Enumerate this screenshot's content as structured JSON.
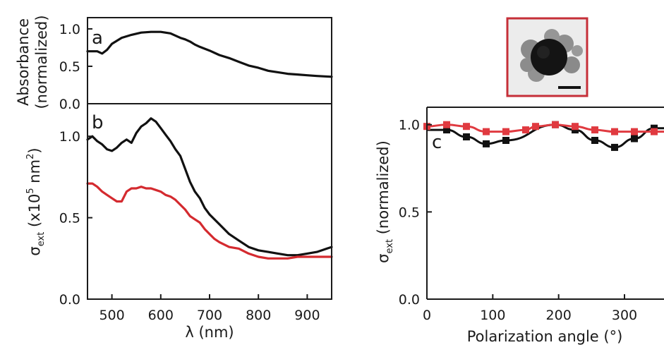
{
  "chart_data": [
    {
      "panel": "a",
      "type": "line",
      "xlabel": "λ (nm)",
      "ylabel": [
        "Absorbance",
        "(normalized)"
      ],
      "xlim": [
        450,
        950
      ],
      "ylim": [
        0,
        1.15
      ],
      "xticks": [
        "500",
        "600",
        "700",
        "800",
        "900"
      ],
      "yticks": [
        "0.0",
        "0.5",
        "1.0"
      ],
      "series": [
        {
          "color": "#111111",
          "x": [
            450,
            470,
            480,
            490,
            500,
            520,
            540,
            560,
            580,
            600,
            620,
            640,
            650,
            660,
            670,
            680,
            700,
            720,
            740,
            760,
            780,
            800,
            820,
            840,
            860,
            880,
            900,
            920,
            950
          ],
          "y": [
            0.7,
            0.7,
            0.67,
            0.72,
            0.8,
            0.88,
            0.92,
            0.95,
            0.96,
            0.96,
            0.94,
            0.88,
            0.86,
            0.83,
            0.79,
            0.76,
            0.71,
            0.65,
            0.61,
            0.56,
            0.51,
            0.48,
            0.44,
            0.42,
            0.4,
            0.39,
            0.38,
            0.37,
            0.36
          ]
        }
      ]
    },
    {
      "panel": "b",
      "type": "line",
      "xlabel": "λ (nm)",
      "ylabel": "σext (x10^5 nm^2)",
      "ylabel_parts": {
        "sigma": "σ",
        "sub": "ext",
        "main": " (x10",
        "exp": "5",
        "unit": " nm",
        "unit_exp": "2",
        "close": ")"
      },
      "xlim": [
        450,
        950
      ],
      "ylim": [
        0,
        1.2
      ],
      "xticks": [
        "500",
        "600",
        "700",
        "800",
        "900"
      ],
      "yticks": [
        "0.0",
        "0.5",
        "1.0"
      ],
      "series": [
        {
          "color": "#111111",
          "x": [
            450,
            460,
            470,
            480,
            490,
            500,
            510,
            520,
            530,
            540,
            550,
            560,
            570,
            580,
            590,
            600,
            610,
            620,
            630,
            640,
            650,
            660,
            670,
            680,
            690,
            700,
            720,
            740,
            760,
            780,
            800,
            820,
            840,
            860,
            880,
            900,
            920,
            940,
            950
          ],
          "y": [
            0.98,
            1.0,
            0.97,
            0.95,
            0.92,
            0.91,
            0.93,
            0.96,
            0.98,
            0.96,
            1.02,
            1.06,
            1.08,
            1.11,
            1.09,
            1.05,
            1.01,
            0.97,
            0.92,
            0.88,
            0.8,
            0.72,
            0.66,
            0.62,
            0.56,
            0.52,
            0.46,
            0.4,
            0.36,
            0.32,
            0.3,
            0.29,
            0.28,
            0.27,
            0.27,
            0.28,
            0.29,
            0.31,
            0.32
          ]
        },
        {
          "color": "#d42a2f",
          "x": [
            450,
            460,
            470,
            480,
            490,
            500,
            510,
            520,
            530,
            540,
            550,
            560,
            570,
            580,
            590,
            600,
            610,
            620,
            630,
            640,
            650,
            660,
            670,
            680,
            690,
            700,
            710,
            720,
            740,
            760,
            780,
            800,
            820,
            840,
            860,
            880,
            900,
            920,
            940,
            950
          ],
          "y": [
            0.71,
            0.71,
            0.69,
            0.66,
            0.64,
            0.62,
            0.6,
            0.6,
            0.66,
            0.68,
            0.68,
            0.69,
            0.68,
            0.68,
            0.67,
            0.66,
            0.64,
            0.63,
            0.61,
            0.58,
            0.55,
            0.51,
            0.49,
            0.47,
            0.43,
            0.4,
            0.37,
            0.35,
            0.32,
            0.31,
            0.28,
            0.26,
            0.25,
            0.25,
            0.25,
            0.26,
            0.26,
            0.26,
            0.26,
            0.26
          ]
        }
      ]
    },
    {
      "panel": "c",
      "type": "scatter",
      "xlabel": "Polarization angle (°)",
      "ylabel": "σext (normalized)",
      "ylabel_parts": {
        "sigma": "σ",
        "sub": "ext",
        "main": " (normalized)"
      },
      "xlim": [
        0,
        360
      ],
      "ylim": [
        0,
        1.1
      ],
      "xticks": [
        "0",
        "100",
        "200",
        "300"
      ],
      "yticks": [
        "0.0",
        "0.5",
        "1.0"
      ],
      "series": [
        {
          "color": "#111111",
          "x": [
            30,
            60,
            90,
            120,
            195,
            225,
            255,
            285,
            315,
            345
          ],
          "y": [
            0.97,
            0.93,
            0.89,
            0.91,
            1.0,
            0.97,
            0.91,
            0.87,
            0.92,
            0.98
          ],
          "fit": true
        },
        {
          "color": "#e03a40",
          "x": [
            0,
            30,
            60,
            90,
            120,
            150,
            165,
            195,
            225,
            255,
            285,
            315,
            345
          ],
          "y": [
            0.99,
            1.0,
            0.99,
            0.96,
            0.96,
            0.97,
            0.99,
            1.0,
            0.99,
            0.97,
            0.96,
            0.96,
            0.96
          ],
          "fit": true
        }
      ]
    }
  ],
  "inset": {
    "frame_color": "#c62f38"
  }
}
